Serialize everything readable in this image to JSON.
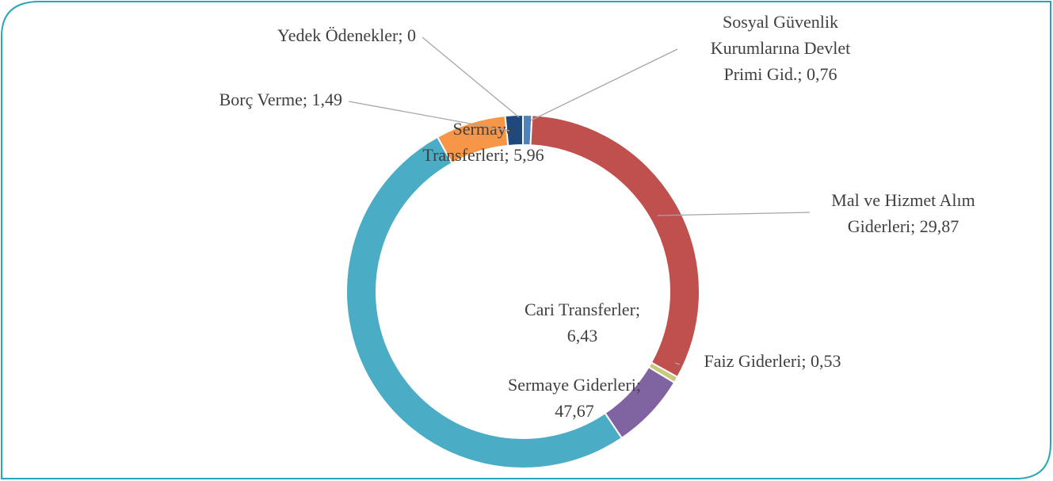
{
  "chart_data": {
    "type": "doughnut",
    "labels": [
      [
        "Sosyal Güvenlik",
        "Kurumlarına Devlet",
        "Primi Gid.; 0,76"
      ],
      [
        "Mal ve Hizmet Alım",
        "Giderleri; 29,87"
      ],
      [
        "Faiz Giderleri; 0,53"
      ],
      [
        "Cari Transferler;",
        "6,43"
      ],
      [
        "Sermaye Giderleri;",
        "47,67"
      ],
      [
        "Sermaye",
        "Transferleri; 5,96"
      ],
      [
        "Borç Verme; 1,49"
      ],
      [
        "Yedek Ödenekler; 0"
      ]
    ],
    "values": [
      0.76,
      29.87,
      0.53,
      6.43,
      47.67,
      5.96,
      1.49,
      0
    ],
    "colors": [
      "#4f81bd",
      "#c0504d",
      "#c9c97a",
      "#8064a2",
      "#4bacc6",
      "#f79646",
      "#1f497d",
      "#7f7f7f"
    ]
  }
}
